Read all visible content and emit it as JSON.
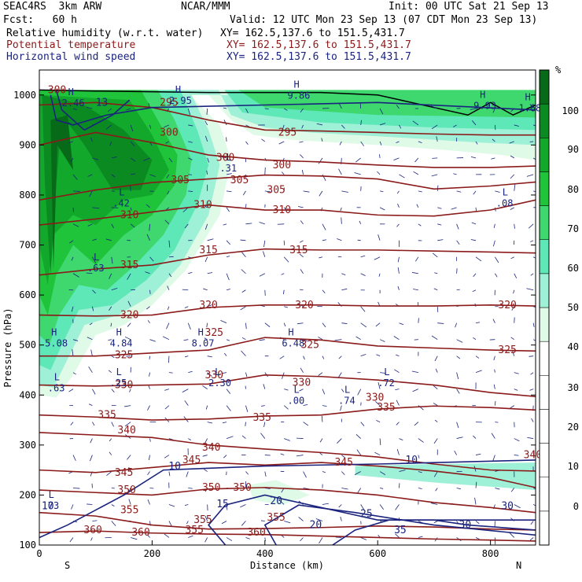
{
  "header": {
    "model": "SEAC4RS  3km ARW",
    "org": "NCAR/MMM",
    "init": "Init: 00 UTC Sat 21 Sep 13",
    "fcst": "Fcst:   60 h",
    "valid": "Valid: 12 UTC Mon 23 Sep 13 (07 CDT Mon 23 Sep 13)",
    "field1": "Relative humidity (w.r.t. water)",
    "field1_xy": "XY= 162.5,137.6 to 151.5,431.7",
    "field2": "Potential temperature",
    "field2_xy": "XY= 162.5,137.6 to 151.5,431.7",
    "field3": "Horizontal wind speed",
    "field3_xy": "XY= 162.5,137.6 to 151.5,431.7"
  },
  "colors": {
    "theta": "#8b1a1a",
    "wind": "#1a237e",
    "rh_scale": [
      "#ffffff",
      "#ffffff",
      "#ffffff",
      "#ffffff",
      "#ffffff",
      "#ffffff",
      "#e0fae8",
      "#9ef0d6",
      "#5ee8b8",
      "#3ed86e",
      "#1fc43a",
      "#12a82c",
      "#0b8a22",
      "#076a18"
    ]
  },
  "chart_data": {
    "type": "cross-section contour",
    "xlabel": "Distance (km)",
    "ylabel": "Pressure (hPa)",
    "x_ticks": [
      "0",
      "200",
      "400",
      "600",
      "800"
    ],
    "y_ticks": [
      "100",
      "200",
      "300",
      "400",
      "500",
      "600",
      "700",
      "800",
      "900",
      "1000"
    ],
    "xlim": [
      0,
      880
    ],
    "ylim": [
      1050,
      100
    ],
    "endpoints": {
      "left": "S",
      "right": "N"
    },
    "colorbar": {
      "unit": "%",
      "ticks": [
        "100",
        "90",
        "80",
        "70",
        "60",
        "50",
        "40",
        "30",
        "20",
        "10",
        "0"
      ]
    },
    "theta_contours": [
      {
        "value": "360",
        "labels": [
          [
            95,
            130
          ],
          [
            180,
            125
          ],
          [
            385,
            125
          ]
        ]
      },
      {
        "value": "355",
        "labels": [
          [
            160,
            170
          ],
          [
            275,
            130
          ],
          [
            290,
            150
          ],
          [
            420,
            155
          ]
        ]
      },
      {
        "value": "350",
        "labels": [
          [
            155,
            210
          ],
          [
            305,
            215
          ],
          [
            360,
            215
          ]
        ]
      },
      {
        "value": "345",
        "labels": [
          [
            150,
            245
          ],
          [
            270,
            270
          ],
          [
            540,
            265
          ]
        ]
      },
      {
        "value": "340",
        "labels": [
          [
            155,
            330
          ],
          [
            305,
            295
          ],
          [
            875,
            280
          ]
        ]
      },
      {
        "value": "335",
        "labels": [
          [
            120,
            360
          ],
          [
            395,
            355
          ],
          [
            615,
            375
          ]
        ]
      },
      {
        "value": "330",
        "labels": [
          [
            150,
            420
          ],
          [
            310,
            440
          ],
          [
            465,
            425
          ],
          [
            595,
            395
          ]
        ]
      },
      {
        "value": "325",
        "labels": [
          [
            150,
            480
          ],
          [
            310,
            525
          ],
          [
            480,
            500
          ],
          [
            830,
            490
          ]
        ]
      },
      {
        "value": "320",
        "labels": [
          [
            160,
            560
          ],
          [
            300,
            580
          ],
          [
            470,
            580
          ],
          [
            830,
            580
          ]
        ]
      },
      {
        "value": "315",
        "labels": [
          [
            160,
            660
          ],
          [
            300,
            690
          ],
          [
            460,
            690
          ]
        ]
      },
      {
        "value": "310",
        "labels": [
          [
            160,
            760
          ],
          [
            290,
            780
          ],
          [
            430,
            770
          ]
        ]
      },
      {
        "value": "305",
        "labels": [
          [
            250,
            830
          ],
          [
            355,
            830
          ],
          [
            420,
            810
          ]
        ]
      },
      {
        "value": "300",
        "labels": [
          [
            230,
            925
          ],
          [
            330,
            875
          ],
          [
            430,
            860
          ]
        ]
      },
      {
        "value": "295",
        "labels": [
          [
            230,
            985
          ],
          [
            440,
            925
          ]
        ]
      }
    ],
    "wind_contours": [
      {
        "value": "10",
        "labels": [
          [
            15,
            178
          ],
          [
            240,
            257
          ],
          [
            660,
            270
          ]
        ]
      },
      {
        "value": "15",
        "labels": [
          [
            325,
            182
          ]
        ]
      },
      {
        "value": "20",
        "labels": [
          [
            490,
            140
          ],
          [
            420,
            188
          ]
        ]
      },
      {
        "value": "25",
        "labels": [
          [
            580,
            162
          ]
        ]
      },
      {
        "value": "30",
        "labels": [
          [
            755,
            140
          ],
          [
            830,
            178
          ]
        ]
      },
      {
        "value": "35",
        "labels": [
          [
            640,
            130
          ]
        ]
      }
    ],
    "extrema": [
      {
        "type": "L",
        "value": ".73",
        "x": 5,
        "y": 185
      },
      {
        "type": "L",
        "value": ".63",
        "x": 15,
        "y": 420
      },
      {
        "type": "L",
        "value": ".25",
        "x": 125,
        "y": 430
      },
      {
        "type": "L",
        "value": "2.30",
        "x": 300,
        "y": 430
      },
      {
        "type": "L",
        "value": ".00",
        "x": 440,
        "y": 395
      },
      {
        "type": "L",
        "value": ".74",
        "x": 530,
        "y": 395
      },
      {
        "type": "L",
        "value": ".72",
        "x": 600,
        "y": 430
      },
      {
        "type": "L",
        "value": ".63",
        "x": 85,
        "y": 660
      },
      {
        "type": "L",
        "value": ".42",
        "x": 130,
        "y": 790
      },
      {
        "type": "L",
        "value": ".31",
        "x": 320,
        "y": 860
      },
      {
        "type": "L",
        "value": ".08",
        "x": 810,
        "y": 790
      },
      {
        "type": "H",
        "value": "5.08",
        "x": 10,
        "y": 510
      },
      {
        "type": "H",
        "value": "4.84",
        "x": 125,
        "y": 510
      },
      {
        "type": "H",
        "value": "8.07",
        "x": 270,
        "y": 510
      },
      {
        "type": "H",
        "value": "6.48",
        "x": 430,
        "y": 510
      },
      {
        "type": "H",
        "value": "2.46",
        "x": 40,
        "y": 990
      },
      {
        "type": "H",
        "value": "2.95",
        "x": 230,
        "y": 995
      },
      {
        "type": "H",
        "value": "9.93",
        "x": 770,
        "y": 985
      },
      {
        "type": "H",
        "value": "9.86",
        "x": 440,
        "y": 1005
      },
      {
        "type": "H",
        "value": "1.68",
        "x": 850,
        "y": 980
      }
    ],
    "low_labels": [
      "13",
      "300"
    ]
  }
}
